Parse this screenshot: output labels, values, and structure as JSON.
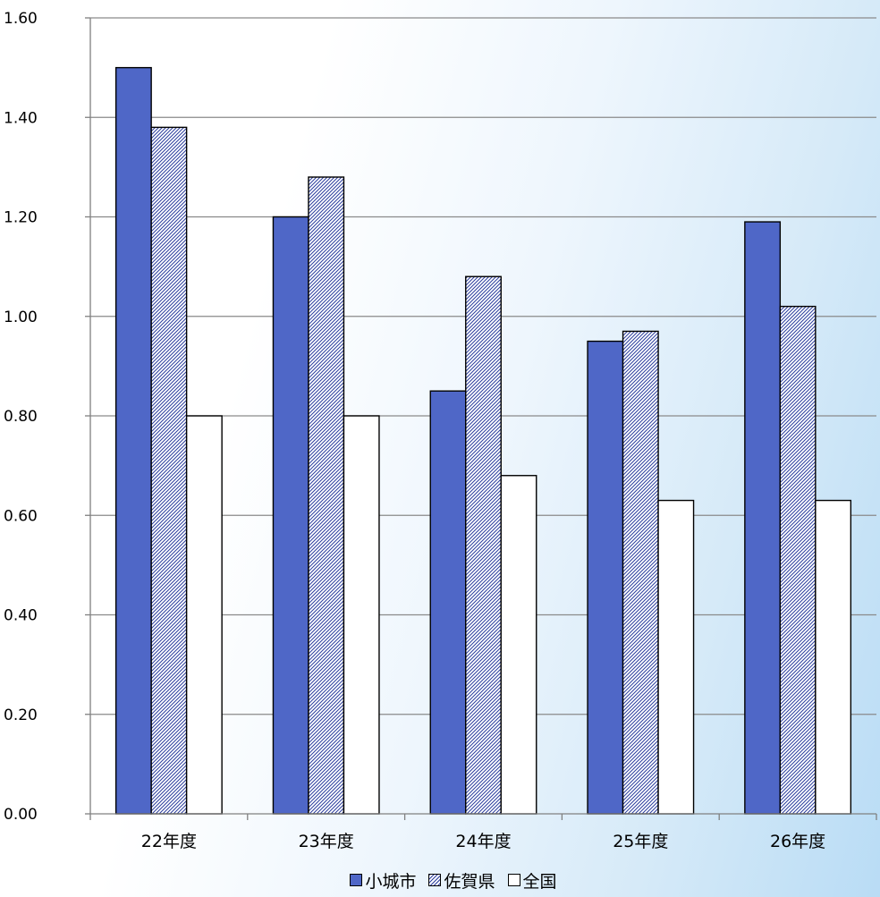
{
  "chart_data": {
    "type": "bar",
    "categories": [
      "22年度",
      "23年度",
      "24年度",
      "25年度",
      "26年度"
    ],
    "series": [
      {
        "name": "小城市",
        "values": [
          1.5,
          1.2,
          0.85,
          0.95,
          1.19
        ],
        "fill": "#4f67c7",
        "pattern": "solid"
      },
      {
        "name": "佐賀県",
        "values": [
          1.38,
          1.28,
          1.08,
          0.97,
          1.02
        ],
        "fill": "#2b3d9e",
        "pattern": "diagonal-hatch"
      },
      {
        "name": "全国",
        "values": [
          0.8,
          0.8,
          0.68,
          0.63,
          0.63
        ],
        "fill": "#ffffff",
        "pattern": "solid"
      }
    ],
    "y_ticks": [
      "0.00",
      "0.20",
      "0.40",
      "0.60",
      "0.80",
      "1.00",
      "1.20",
      "1.40",
      "1.60"
    ],
    "ylim": [
      0,
      1.6
    ],
    "grid": true,
    "legend_position": "bottom",
    "title": "",
    "xlabel": "",
    "ylabel": ""
  }
}
